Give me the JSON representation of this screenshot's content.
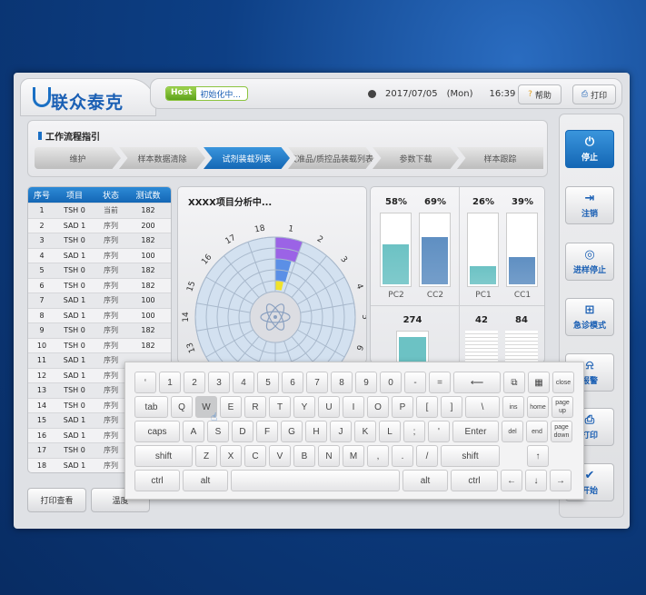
{
  "header": {
    "brand": "联众泰克",
    "host_label": "Host",
    "host_status": "初始化中...",
    "date": "2017/07/05",
    "weekday": "(Mon)",
    "time": "16:39",
    "help": "帮助",
    "print": "打印"
  },
  "workflow": {
    "title": "工作流程指引",
    "steps": [
      "维护",
      "样本数据清除",
      "试剂装载列表",
      "校准品/质控品装载列表",
      "参数下载",
      "样本跟踪"
    ],
    "active": 2
  },
  "table": {
    "headers": [
      "序号",
      "项目",
      "状态",
      "测试数"
    ],
    "rows": [
      [
        "1",
        "TSH 0",
        "当前",
        "182"
      ],
      [
        "2",
        "SAD 1",
        "序列",
        "200"
      ],
      [
        "3",
        "TSH 0",
        "序列",
        "182"
      ],
      [
        "4",
        "SAD 1",
        "序列",
        "100"
      ],
      [
        "5",
        "TSH 0",
        "序列",
        "182"
      ],
      [
        "6",
        "TSH 0",
        "序列",
        "182"
      ],
      [
        "7",
        "SAD 1",
        "序列",
        "100"
      ],
      [
        "8",
        "SAD 1",
        "序列",
        "100"
      ],
      [
        "9",
        "TSH 0",
        "序列",
        "182"
      ],
      [
        "10",
        "TSH 0",
        "序列",
        "182"
      ],
      [
        "11",
        "SAD 1",
        "序列",
        ""
      ],
      [
        "12",
        "SAD 1",
        "序列",
        ""
      ],
      [
        "13",
        "TSH 0",
        "序列",
        ""
      ],
      [
        "14",
        "TSH 0",
        "序列",
        ""
      ],
      [
        "15",
        "SAD 1",
        "序列",
        ""
      ],
      [
        "16",
        "SAD 1",
        "序列",
        ""
      ],
      [
        "17",
        "TSH 0",
        "序列",
        ""
      ],
      [
        "18",
        "SAD 1",
        "序列",
        ""
      ]
    ]
  },
  "analysis": {
    "title": "XXXX项目分析中...",
    "positions": [
      "1",
      "2",
      "3",
      "4",
      "5",
      "6",
      "13",
      "14",
      "15",
      "16",
      "17",
      "18"
    ],
    "slot1_colors": {
      "outer": "#9b63e6",
      "middle": "#5b8fe6",
      "inner": "#f0e22a"
    }
  },
  "bars": {
    "top": [
      {
        "name": "PC2",
        "value": 58,
        "color": "#6cc2c4"
      },
      {
        "name": "CC2",
        "value": 69,
        "color": "#5f8fc2"
      },
      {
        "name": "PC1",
        "value": 26,
        "color": "#6cc2c4"
      },
      {
        "name": "CC1",
        "value": 39,
        "color": "#5f8fc2"
      }
    ],
    "bottom": [
      {
        "value": "274"
      },
      {
        "value": "42"
      },
      {
        "value": "84"
      }
    ]
  },
  "sidebar": [
    {
      "label": "停止",
      "icon": "power-icon",
      "glyph": "⏻"
    },
    {
      "label": "注销",
      "icon": "logout-icon",
      "glyph": "⇥"
    },
    {
      "label": "进样停止",
      "icon": "target-icon",
      "glyph": "◎"
    },
    {
      "label": "急诊模式",
      "icon": "emergency-icon",
      "glyph": "⊞"
    },
    {
      "label": "报警",
      "icon": "alarm-icon",
      "glyph": "⍾"
    },
    {
      "label": "打印",
      "icon": "printer-icon",
      "glyph": "⎙"
    },
    {
      "label": "开始",
      "icon": "check-icon",
      "glyph": "✔"
    }
  ],
  "bottom_buttons": [
    "打印查看",
    "温度"
  ],
  "keyboard": {
    "rows": [
      [
        "‘",
        "1",
        "2",
        "3",
        "4",
        "5",
        "6",
        "7",
        "8",
        "9",
        "0",
        "-",
        "=",
        "⟵",
        "⧉",
        "▦",
        "close"
      ],
      [
        "tab",
        "Q",
        "W",
        "E",
        "R",
        "T",
        "Y",
        "U",
        "I",
        "O",
        "P",
        "[",
        "]",
        "\\",
        "ins",
        "home",
        "page up"
      ],
      [
        "caps",
        "A",
        "S",
        "D",
        "F",
        "G",
        "H",
        "J",
        "K",
        "L",
        ";",
        "'",
        "Enter",
        "del",
        "end",
        "page down"
      ],
      [
        "shift",
        "Z",
        "X",
        "C",
        "V",
        "B",
        "N",
        "M",
        ",",
        ".",
        "/",
        "shift",
        "",
        "↑"
      ],
      [
        "ctrl",
        "alt",
        " ",
        "alt",
        "ctrl",
        "←",
        "↓",
        "→"
      ]
    ],
    "pressed": "W"
  },
  "colors": {
    "accent": "#1a6fc4",
    "teal": "#6cc2c4",
    "steel": "#5f8fc2"
  }
}
